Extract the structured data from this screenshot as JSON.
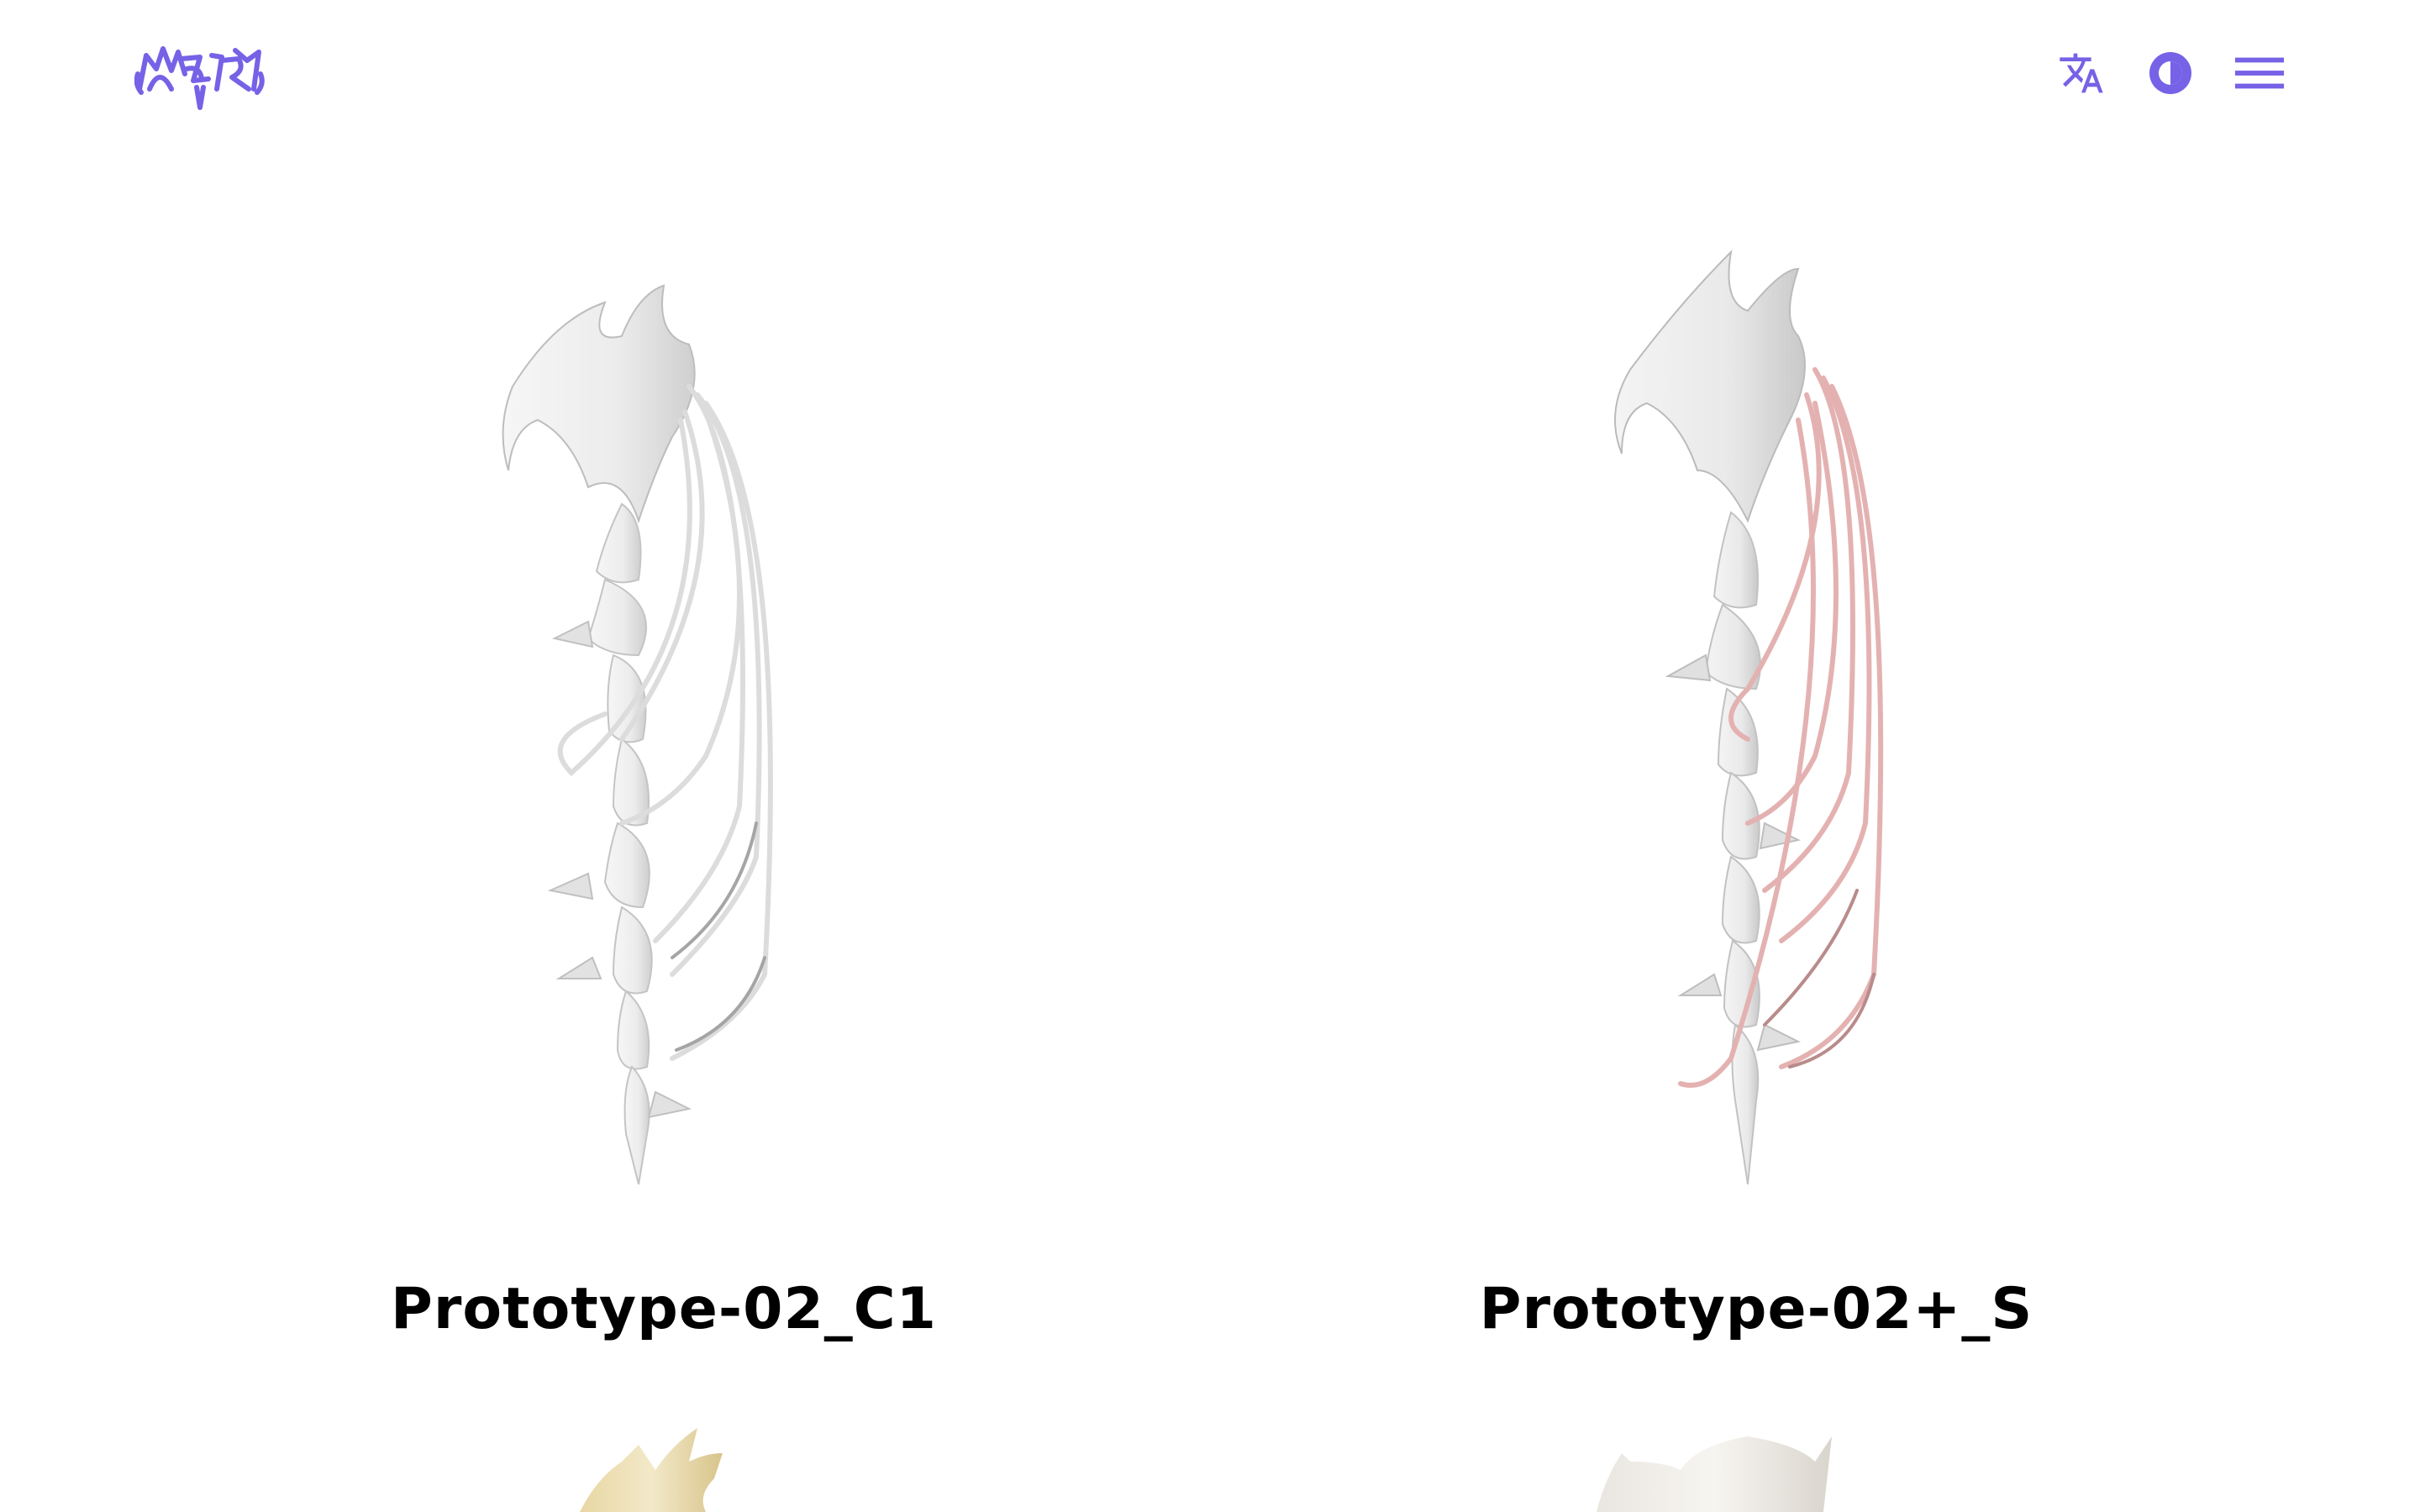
{
  "brand": {
    "logo_icon": "glitch-logo-icon",
    "accent_color": "#7662E6"
  },
  "header": {
    "actions": [
      {
        "icon": "translate-icon",
        "label": "Language"
      },
      {
        "icon": "contrast-icon",
        "label": "Theme"
      },
      {
        "icon": "menu-icon",
        "label": "Menu"
      }
    ]
  },
  "products": [
    {
      "title": "Prototype-02_C1",
      "cable_color": "#d9d9d9"
    },
    {
      "title": "Prototype-02+_S",
      "cable_color": "#e0a9a9"
    },
    {
      "title": "",
      "preview_color": "#efe3bd"
    },
    {
      "title": "",
      "preview_color": "#f0ede8"
    }
  ],
  "colors": {
    "background": "#ffffff",
    "text": "#000000",
    "accent": "#7662E6"
  }
}
